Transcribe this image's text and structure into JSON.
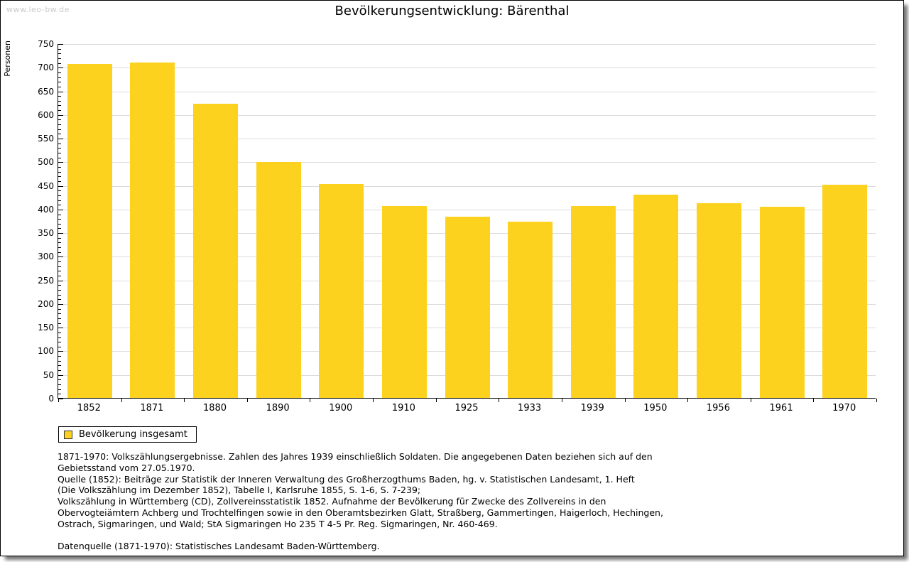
{
  "watermark": "www.leo-bw.de",
  "title": "Bevölkerungsentwicklung: Bärenthal",
  "legend": {
    "label": "Bevölkerung insgesamt"
  },
  "colors": {
    "bar": "#FCD21F",
    "grid": "#DCDCDC",
    "axis": "#000000",
    "watermark": "#C9C9C9"
  },
  "footer": {
    "lines": [
      "1871-1970: Volkszählungsergebnisse. Zahlen des Jahres 1939 einschließlich Soldaten. Die angegebenen Daten beziehen sich auf den",
      "Gebietsstand vom 27.05.1970.",
      "Quelle (1852): Beiträge zur Statistik der Inneren Verwaltung des Großherzogthums Baden, hg. v. Statistischen Landesamt, 1. Heft",
      "(Die Volkszählung im Dezember 1852), Tabelle I, Karlsruhe 1855, S. 1-6, S. 7-239;",
      "Volkszählung in Württemberg (CD), Zollvereinsstatistik 1852. Aufnahme der Bevölkerung für Zwecke des Zollvereins in den",
      "Obervogteiämtern Achberg und Trochtelfingen sowie in den Oberamtsbezirken Glatt, Straßberg, Gammertingen, Haigerloch, Hechingen,",
      "Ostrach, Sigmaringen, und Wald; StA Sigmaringen Ho 235 T 4-5 Pr. Reg. Sigmaringen, Nr. 460-469.",
      "",
      "Datenquelle (1871-1970): Statistisches Landesamt Baden-Württemberg."
    ]
  },
  "chart_data": {
    "type": "bar",
    "title": "Bevölkerungsentwicklung: Bärenthal",
    "xlabel": "",
    "ylabel": "Personen",
    "categories": [
      "1852",
      "1871",
      "1880",
      "1890",
      "1900",
      "1910",
      "1925",
      "1933",
      "1939",
      "1950",
      "1956",
      "1961",
      "1970"
    ],
    "values": [
      706,
      710,
      622,
      499,
      452,
      406,
      384,
      373,
      406,
      430,
      412,
      405,
      451
    ],
    "ylim": [
      0,
      750
    ],
    "ytick_step": 50,
    "minor_tick_step": 10,
    "grid": true,
    "bar_color": "#FCD21F",
    "legend_entries": [
      "Bevölkerung insgesamt"
    ],
    "legend_position": "bottom-left"
  }
}
